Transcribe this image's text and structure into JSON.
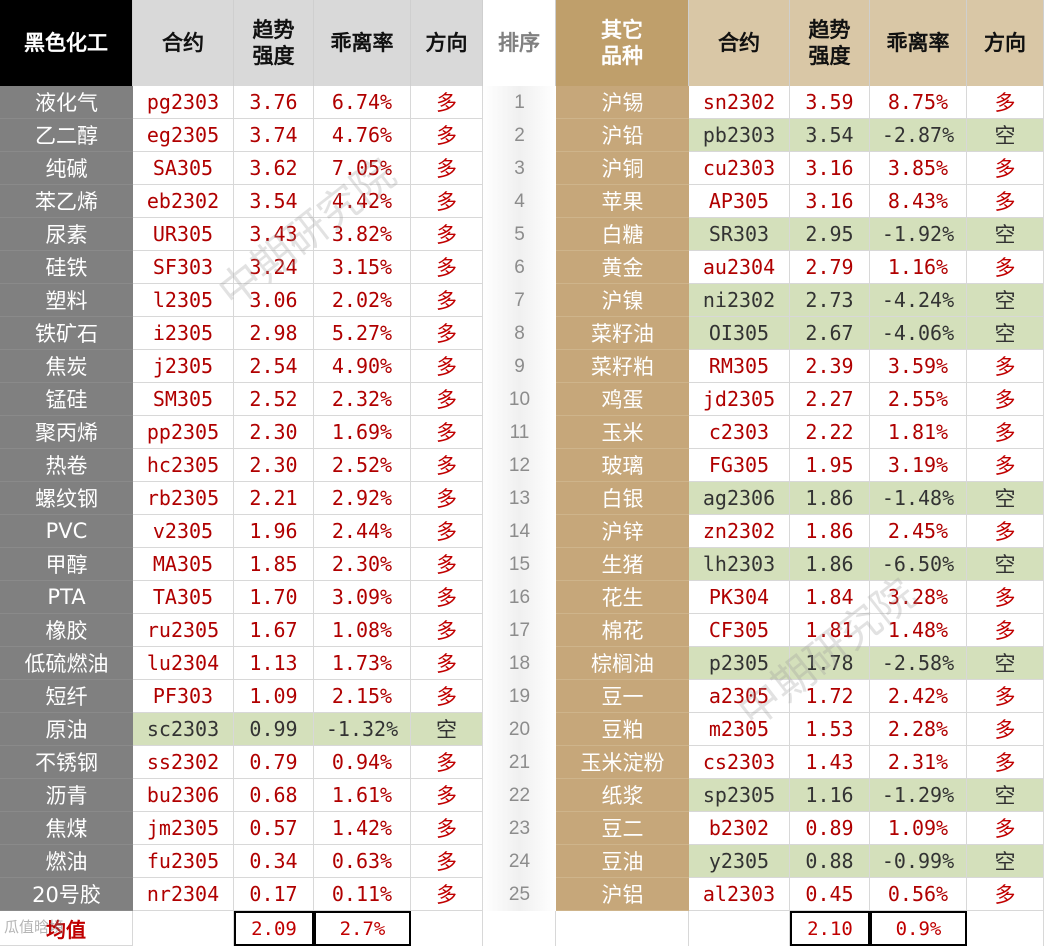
{
  "left_header": {
    "category": "黑色化工",
    "contract": "合约",
    "strength": "趋势\n强度",
    "deviation": "乖离率",
    "direction": "方向"
  },
  "rank_header": "排序",
  "right_header": {
    "category": "其它\n品种",
    "contract": "合约",
    "strength": "趋势\n强度",
    "deviation": "乖离率",
    "direction": "方向"
  },
  "left_rows": [
    {
      "name": "液化气",
      "contract": "pg2303",
      "strength": "3.76",
      "deviation": "6.74%",
      "direction": "多",
      "short": false
    },
    {
      "name": "乙二醇",
      "contract": "eg2305",
      "strength": "3.74",
      "deviation": "4.76%",
      "direction": "多",
      "short": false
    },
    {
      "name": "纯碱",
      "contract": "SA305",
      "strength": "3.62",
      "deviation": "7.05%",
      "direction": "多",
      "short": false
    },
    {
      "name": "苯乙烯",
      "contract": "eb2302",
      "strength": "3.54",
      "deviation": "4.42%",
      "direction": "多",
      "short": false
    },
    {
      "name": "尿素",
      "contract": "UR305",
      "strength": "3.43",
      "deviation": "3.82%",
      "direction": "多",
      "short": false
    },
    {
      "name": "硅铁",
      "contract": "SF303",
      "strength": "3.24",
      "deviation": "3.15%",
      "direction": "多",
      "short": false
    },
    {
      "name": "塑料",
      "contract": "l2305",
      "strength": "3.06",
      "deviation": "2.02%",
      "direction": "多",
      "short": false
    },
    {
      "name": "铁矿石",
      "contract": "i2305",
      "strength": "2.98",
      "deviation": "5.27%",
      "direction": "多",
      "short": false
    },
    {
      "name": "焦炭",
      "contract": "j2305",
      "strength": "2.54",
      "deviation": "4.90%",
      "direction": "多",
      "short": false
    },
    {
      "name": "锰硅",
      "contract": "SM305",
      "strength": "2.52",
      "deviation": "2.32%",
      "direction": "多",
      "short": false
    },
    {
      "name": "聚丙烯",
      "contract": "pp2305",
      "strength": "2.30",
      "deviation": "1.69%",
      "direction": "多",
      "short": false
    },
    {
      "name": "热卷",
      "contract": "hc2305",
      "strength": "2.30",
      "deviation": "2.52%",
      "direction": "多",
      "short": false
    },
    {
      "name": "螺纹钢",
      "contract": "rb2305",
      "strength": "2.21",
      "deviation": "2.92%",
      "direction": "多",
      "short": false
    },
    {
      "name": "PVC",
      "contract": "v2305",
      "strength": "1.96",
      "deviation": "2.44%",
      "direction": "多",
      "short": false
    },
    {
      "name": "甲醇",
      "contract": "MA305",
      "strength": "1.85",
      "deviation": "2.30%",
      "direction": "多",
      "short": false
    },
    {
      "name": "PTA",
      "contract": "TA305",
      "strength": "1.70",
      "deviation": "3.09%",
      "direction": "多",
      "short": false
    },
    {
      "name": "橡胶",
      "contract": "ru2305",
      "strength": "1.67",
      "deviation": "1.08%",
      "direction": "多",
      "short": false
    },
    {
      "name": "低硫燃油",
      "contract": "lu2304",
      "strength": "1.13",
      "deviation": "1.73%",
      "direction": "多",
      "short": false
    },
    {
      "name": "短纤",
      "contract": "PF303",
      "strength": "1.09",
      "deviation": "2.15%",
      "direction": "多",
      "short": false
    },
    {
      "name": "原油",
      "contract": "sc2303",
      "strength": "0.99",
      "deviation": "-1.32%",
      "direction": "空",
      "short": true
    },
    {
      "name": "不锈钢",
      "contract": "ss2302",
      "strength": "0.79",
      "deviation": "0.94%",
      "direction": "多",
      "short": false
    },
    {
      "name": "沥青",
      "contract": "bu2306",
      "strength": "0.68",
      "deviation": "1.61%",
      "direction": "多",
      "short": false
    },
    {
      "name": "焦煤",
      "contract": "jm2305",
      "strength": "0.57",
      "deviation": "1.42%",
      "direction": "多",
      "short": false
    },
    {
      "name": "燃油",
      "contract": "fu2305",
      "strength": "0.34",
      "deviation": "0.63%",
      "direction": "多",
      "short": false
    },
    {
      "name": "20号胶",
      "contract": "nr2304",
      "strength": "0.17",
      "deviation": "0.11%",
      "direction": "多",
      "short": false
    }
  ],
  "ranks": [
    "1",
    "2",
    "3",
    "4",
    "5",
    "6",
    "7",
    "8",
    "9",
    "10",
    "11",
    "12",
    "13",
    "14",
    "15",
    "16",
    "17",
    "18",
    "19",
    "20",
    "21",
    "22",
    "23",
    "24",
    "25"
  ],
  "right_rows": [
    {
      "name": "沪锡",
      "contract": "sn2302",
      "strength": "3.59",
      "deviation": "8.75%",
      "direction": "多",
      "short": false
    },
    {
      "name": "沪铅",
      "contract": "pb2303",
      "strength": "3.54",
      "deviation": "-2.87%",
      "direction": "空",
      "short": true
    },
    {
      "name": "沪铜",
      "contract": "cu2303",
      "strength": "3.16",
      "deviation": "3.85%",
      "direction": "多",
      "short": false
    },
    {
      "name": "苹果",
      "contract": "AP305",
      "strength": "3.16",
      "deviation": "8.43%",
      "direction": "多",
      "short": false
    },
    {
      "name": "白糖",
      "contract": "SR303",
      "strength": "2.95",
      "deviation": "-1.92%",
      "direction": "空",
      "short": true
    },
    {
      "name": "黄金",
      "contract": "au2304",
      "strength": "2.79",
      "deviation": "1.16%",
      "direction": "多",
      "short": false
    },
    {
      "name": "沪镍",
      "contract": "ni2302",
      "strength": "2.73",
      "deviation": "-4.24%",
      "direction": "空",
      "short": true
    },
    {
      "name": "菜籽油",
      "contract": "OI305",
      "strength": "2.67",
      "deviation": "-4.06%",
      "direction": "空",
      "short": true
    },
    {
      "name": "菜籽粕",
      "contract": "RM305",
      "strength": "2.39",
      "deviation": "3.59%",
      "direction": "多",
      "short": false
    },
    {
      "name": "鸡蛋",
      "contract": "jd2305",
      "strength": "2.27",
      "deviation": "2.55%",
      "direction": "多",
      "short": false
    },
    {
      "name": "玉米",
      "contract": "c2303",
      "strength": "2.22",
      "deviation": "1.81%",
      "direction": "多",
      "short": false
    },
    {
      "name": "玻璃",
      "contract": "FG305",
      "strength": "1.95",
      "deviation": "3.19%",
      "direction": "多",
      "short": false
    },
    {
      "name": "白银",
      "contract": "ag2306",
      "strength": "1.86",
      "deviation": "-1.48%",
      "direction": "空",
      "short": true
    },
    {
      "name": "沪锌",
      "contract": "zn2302",
      "strength": "1.86",
      "deviation": "2.45%",
      "direction": "多",
      "short": false
    },
    {
      "name": "生猪",
      "contract": "lh2303",
      "strength": "1.86",
      "deviation": "-6.50%",
      "direction": "空",
      "short": true
    },
    {
      "name": "花生",
      "contract": "PK304",
      "strength": "1.84",
      "deviation": "3.28%",
      "direction": "多",
      "short": false
    },
    {
      "name": "棉花",
      "contract": "CF305",
      "strength": "1.81",
      "deviation": "1.48%",
      "direction": "多",
      "short": false
    },
    {
      "name": "棕榈油",
      "contract": "p2305",
      "strength": "1.78",
      "deviation": "-2.58%",
      "direction": "空",
      "short": true
    },
    {
      "name": "豆一",
      "contract": "a2305",
      "strength": "1.72",
      "deviation": "2.42%",
      "direction": "多",
      "short": false
    },
    {
      "name": "豆粕",
      "contract": "m2305",
      "strength": "1.53",
      "deviation": "2.28%",
      "direction": "多",
      "short": false
    },
    {
      "name": "玉米淀粉",
      "contract": "cs2303",
      "strength": "1.43",
      "deviation": "2.31%",
      "direction": "多",
      "short": false
    },
    {
      "name": "纸浆",
      "contract": "sp2305",
      "strength": "1.16",
      "deviation": "-1.29%",
      "direction": "空",
      "short": true
    },
    {
      "name": "豆二",
      "contract": "b2302",
      "strength": "0.89",
      "deviation": "1.09%",
      "direction": "多",
      "short": false
    },
    {
      "name": "豆油",
      "contract": "y2305",
      "strength": "0.88",
      "deviation": "-0.99%",
      "direction": "空",
      "short": true
    },
    {
      "name": "沪铝",
      "contract": "al2303",
      "strength": "0.45",
      "deviation": "0.56%",
      "direction": "多",
      "short": false
    }
  ],
  "footer": {
    "label": "均值",
    "left_strength": "2.09",
    "left_deviation": "2.7%",
    "right_strength": "2.10",
    "right_deviation": "0.9%"
  },
  "watermarks": {
    "text": "中期研究院",
    "brand": "瓜值晗境"
  },
  "colors": {
    "left_header_bg": "#000000",
    "left_name_bg": "#808080",
    "right_header_bg": "#bf9f6b",
    "right_name_bg": "#c6a77a",
    "short_highlight": "#d4e0bb",
    "value_text": "#b00000"
  }
}
